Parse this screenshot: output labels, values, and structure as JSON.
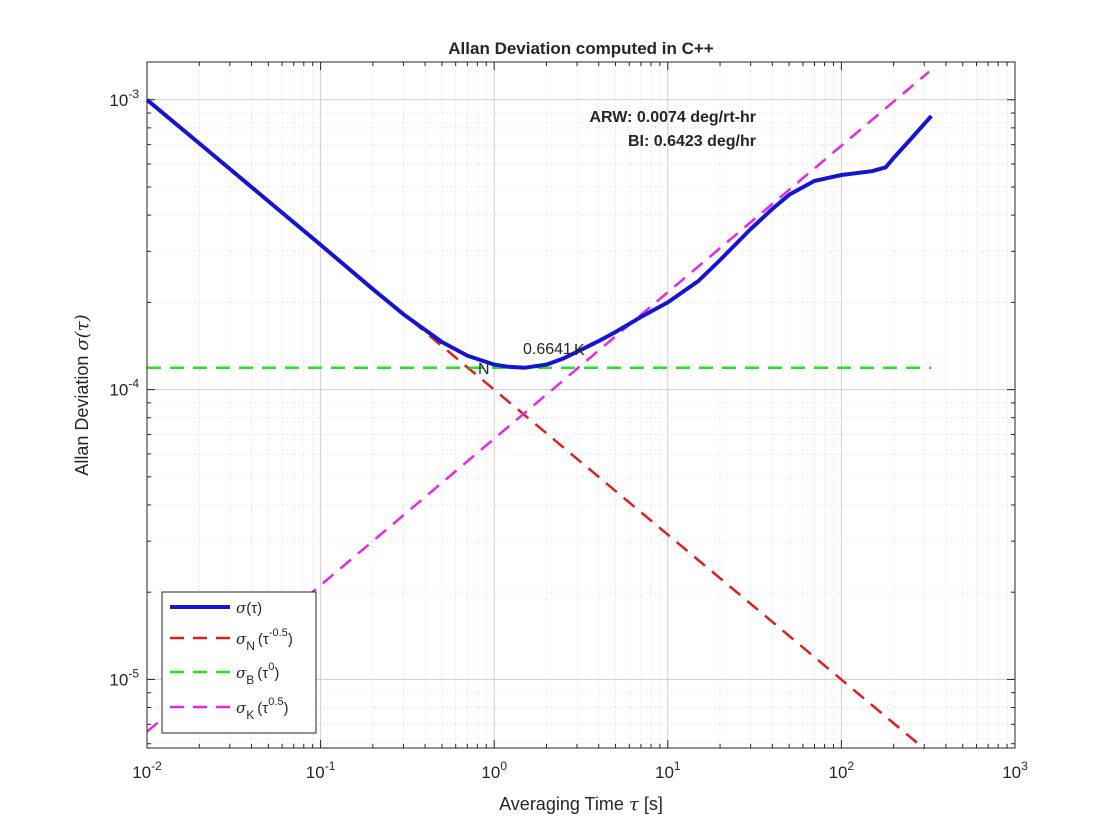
{
  "chart_data": {
    "type": "line",
    "title": "Allan Deviation computed in C++",
    "xlabel": {
      "text": "Averaging Time ",
      "sym": "τ",
      "unit": " [s]"
    },
    "ylabel": {
      "text": "Allan Deviation ",
      "sym": "σ(τ)"
    },
    "xscale": "log",
    "yscale": "log",
    "xlim": [
      0.01,
      1000
    ],
    "ylim": [
      5.8e-06,
      0.00135
    ],
    "grid": true,
    "x_ticks": [
      {
        "base": "10",
        "exp": "-2",
        "value": 0.01
      },
      {
        "base": "10",
        "exp": "-1",
        "value": 0.1
      },
      {
        "base": "10",
        "exp": "0",
        "value": 1
      },
      {
        "base": "10",
        "exp": "1",
        "value": 10
      },
      {
        "base": "10",
        "exp": "2",
        "value": 100
      },
      {
        "base": "10",
        "exp": "3",
        "value": 1000
      }
    ],
    "y_ticks": [
      {
        "base": "10",
        "exp": "-5",
        "value": 1e-05
      },
      {
        "base": "10",
        "exp": "-4",
        "value": 0.0001
      },
      {
        "base": "10",
        "exp": "-3",
        "value": 0.001
      }
    ],
    "annotations": {
      "arw": "ARW: 0.0074 deg/rt-hr",
      "bi": "BI: 0.6423 deg/hr",
      "n_label": "N",
      "k_label": "K",
      "b_label": "0.6641"
    },
    "legend": {
      "placement": "bottom-left",
      "entries": [
        {
          "sym": "σ",
          "sub": "",
          "paren": "(τ)",
          "sup": "",
          "color": "#1414d2",
          "style": "solid"
        },
        {
          "sym": "σ",
          "sub": "N",
          "paren": "(τ",
          "sup": "-0.5",
          "color": "#e01e1e",
          "style": "dashed"
        },
        {
          "sym": "σ",
          "sub": "B",
          "paren": "(τ",
          "sup": "0",
          "color": "#21e621",
          "style": "dashed"
        },
        {
          "sym": "σ",
          "sub": "K",
          "paren": "(τ",
          "sup": "0.5",
          "color": "#e628e6",
          "style": "dashed"
        }
      ]
    },
    "series": [
      {
        "name": "σ(τ)",
        "color": "#1414d2",
        "x": [
          0.01,
          0.02,
          0.05,
          0.1,
          0.2,
          0.3,
          0.5,
          0.7,
          1.0,
          1.2,
          1.5,
          2.0,
          2.5,
          3.0,
          4.0,
          5.0,
          7.0,
          10,
          15,
          20,
          30,
          40,
          50,
          70,
          100,
          150,
          180,
          200,
          250,
          330
        ],
        "y": [
          0.001,
          0.000707,
          0.000447,
          0.000316,
          0.000222,
          0.000182,
          0.000146,
          0.000131,
          0.000122,
          0.00012,
          0.000119,
          0.000122,
          0.000128,
          0.000135,
          0.000147,
          0.000158,
          0.000178,
          0.0002,
          0.000237,
          0.00028,
          0.000358,
          0.00042,
          0.00047,
          0.000525,
          0.00055,
          0.000567,
          0.000585,
          0.00063,
          0.00073,
          0.00088
        ]
      },
      {
        "name": "σ_N",
        "color": "#e01e1e",
        "x": [
          0.01,
          300
        ],
        "y": [
          0.001,
          5.77e-06
        ]
      },
      {
        "name": "σ_B",
        "color": "#21e621",
        "x": [
          0.01,
          330
        ],
        "y": [
          0.000119,
          0.000119
        ]
      },
      {
        "name": "σ_K",
        "color": "#e628e6",
        "x": [
          0.01,
          320
        ],
        "y": [
          6.6e-06,
          0.00125
        ]
      }
    ]
  }
}
